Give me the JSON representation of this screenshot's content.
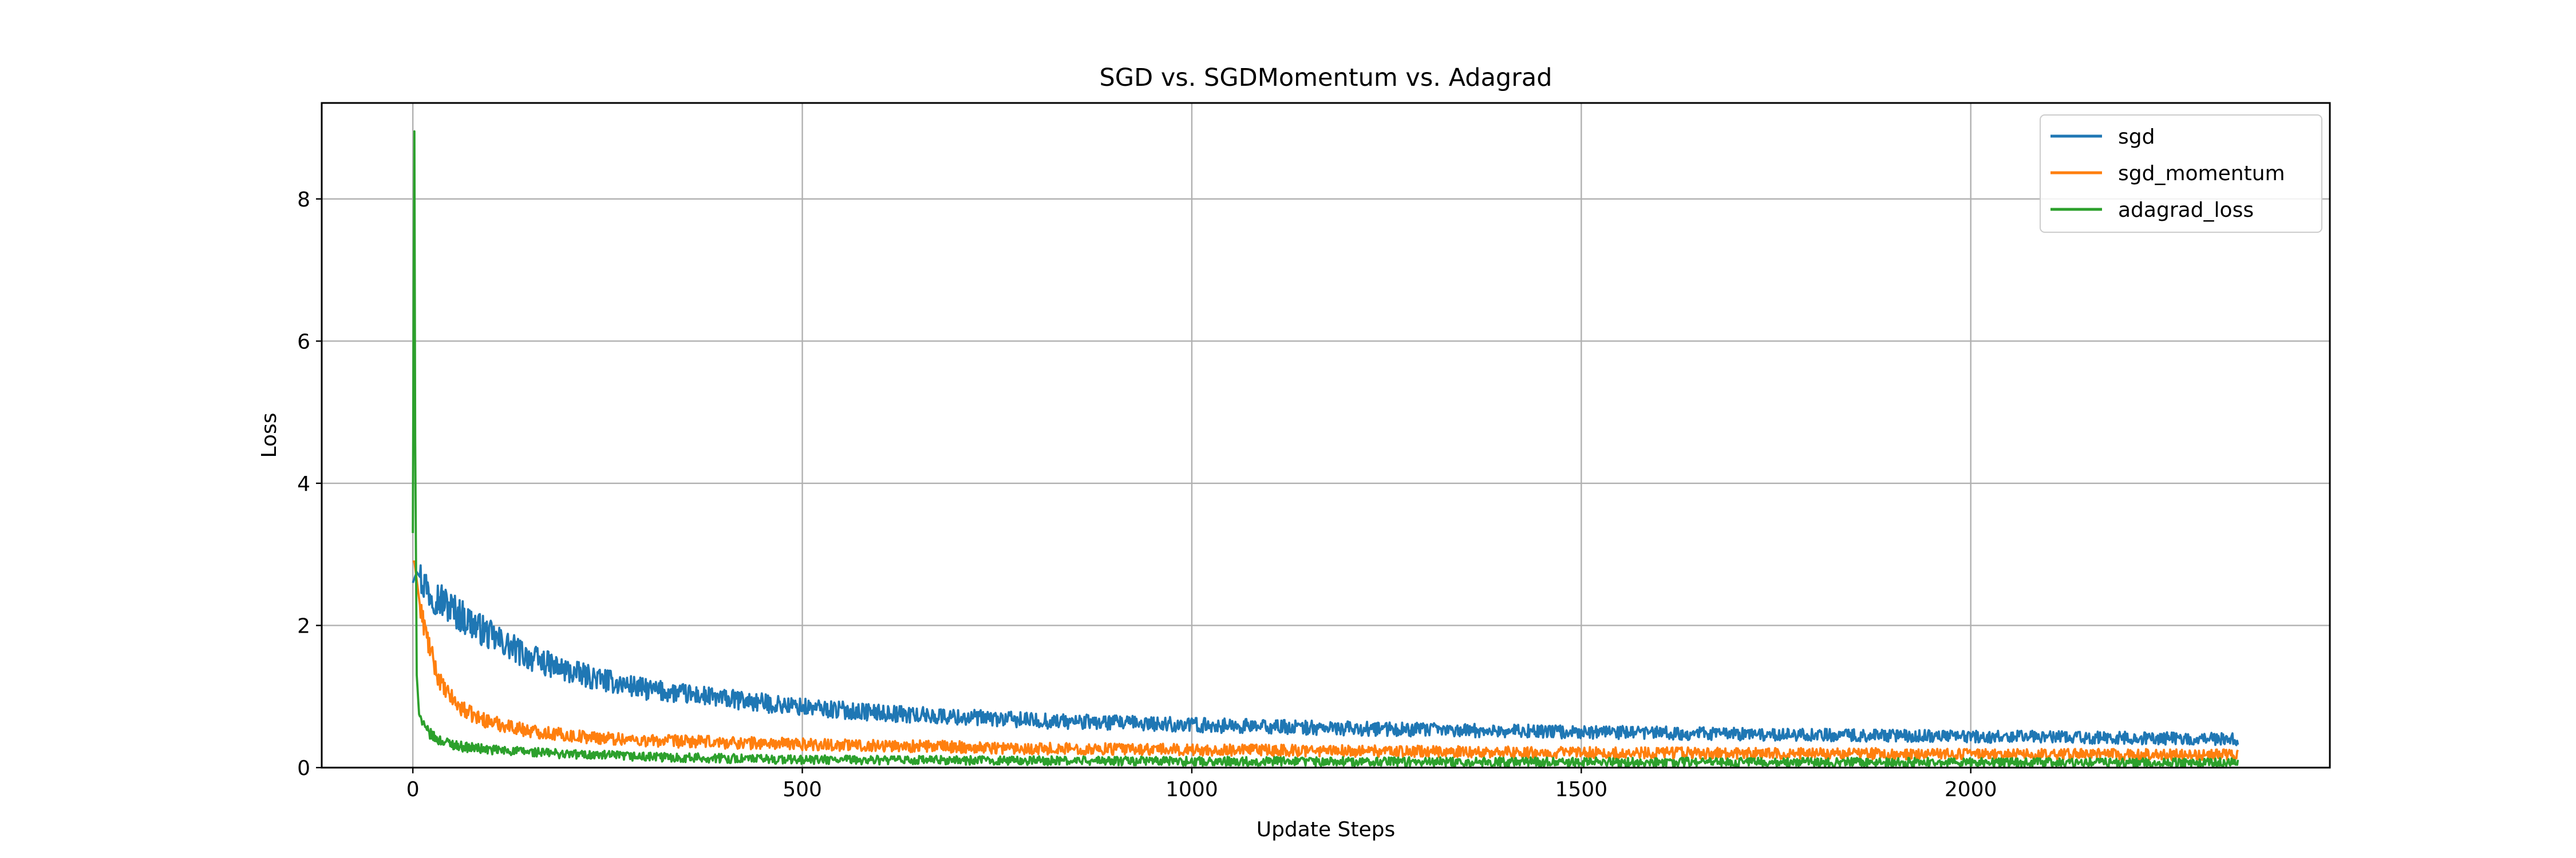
{
  "chart_data": {
    "type": "line",
    "title": "SGD vs. SGDMomentum vs. Adagrad",
    "xlabel": "Update Steps",
    "ylabel": "Loss",
    "xlim": [
      -117,
      2461
    ],
    "ylim": [
      0,
      9.35
    ],
    "xticks": [
      0,
      500,
      1000,
      1500,
      2000
    ],
    "yticks": [
      0,
      2,
      4,
      6,
      8
    ],
    "grid": true,
    "legend_position": "top-right",
    "x_max": 2343,
    "series": [
      {
        "name": "sgd",
        "color": "#1f77b4",
        "keypoints": [
          [
            0,
            2.6
          ],
          [
            5,
            2.75
          ],
          [
            20,
            2.5
          ],
          [
            60,
            2.15
          ],
          [
            100,
            1.85
          ],
          [
            150,
            1.55
          ],
          [
            200,
            1.35
          ],
          [
            250,
            1.22
          ],
          [
            300,
            1.1
          ],
          [
            400,
            0.97
          ],
          [
            500,
            0.85
          ],
          [
            600,
            0.77
          ],
          [
            700,
            0.71
          ],
          [
            800,
            0.66
          ],
          [
            1000,
            0.6
          ],
          [
            1200,
            0.55
          ],
          [
            1500,
            0.5
          ],
          [
            1800,
            0.46
          ],
          [
            2000,
            0.44
          ],
          [
            2343,
            0.4
          ]
        ],
        "noise": [
          0.05,
          0.09
        ]
      },
      {
        "name": "sgd_momentum",
        "color": "#ff7f0e",
        "keypoints": [
          [
            0,
            2.9
          ],
          [
            2,
            2.9
          ],
          [
            10,
            2.2
          ],
          [
            20,
            1.75
          ],
          [
            30,
            1.35
          ],
          [
            40,
            1.1
          ],
          [
            60,
            0.85
          ],
          [
            80,
            0.72
          ],
          [
            100,
            0.64
          ],
          [
            150,
            0.52
          ],
          [
            200,
            0.45
          ],
          [
            300,
            0.38
          ],
          [
            500,
            0.33
          ],
          [
            800,
            0.27
          ],
          [
            1000,
            0.25
          ],
          [
            1500,
            0.21
          ],
          [
            2000,
            0.19
          ],
          [
            2343,
            0.18
          ]
        ],
        "noise": [
          0.07,
          0.05
        ]
      },
      {
        "name": "adagrad_loss",
        "color": "#2ca02c",
        "keypoints": [
          [
            0,
            3.3
          ],
          [
            1,
            6.8
          ],
          [
            2,
            8.95
          ],
          [
            3,
            4.6
          ],
          [
            5,
            1.3
          ],
          [
            8,
            0.75
          ],
          [
            15,
            0.55
          ],
          [
            30,
            0.4
          ],
          [
            60,
            0.3
          ],
          [
            100,
            0.25
          ],
          [
            200,
            0.19
          ],
          [
            300,
            0.15
          ],
          [
            500,
            0.11
          ],
          [
            1000,
            0.09
          ],
          [
            1500,
            0.08
          ],
          [
            2343,
            0.07
          ]
        ],
        "noise": [
          0.06,
          0.03
        ]
      }
    ]
  }
}
